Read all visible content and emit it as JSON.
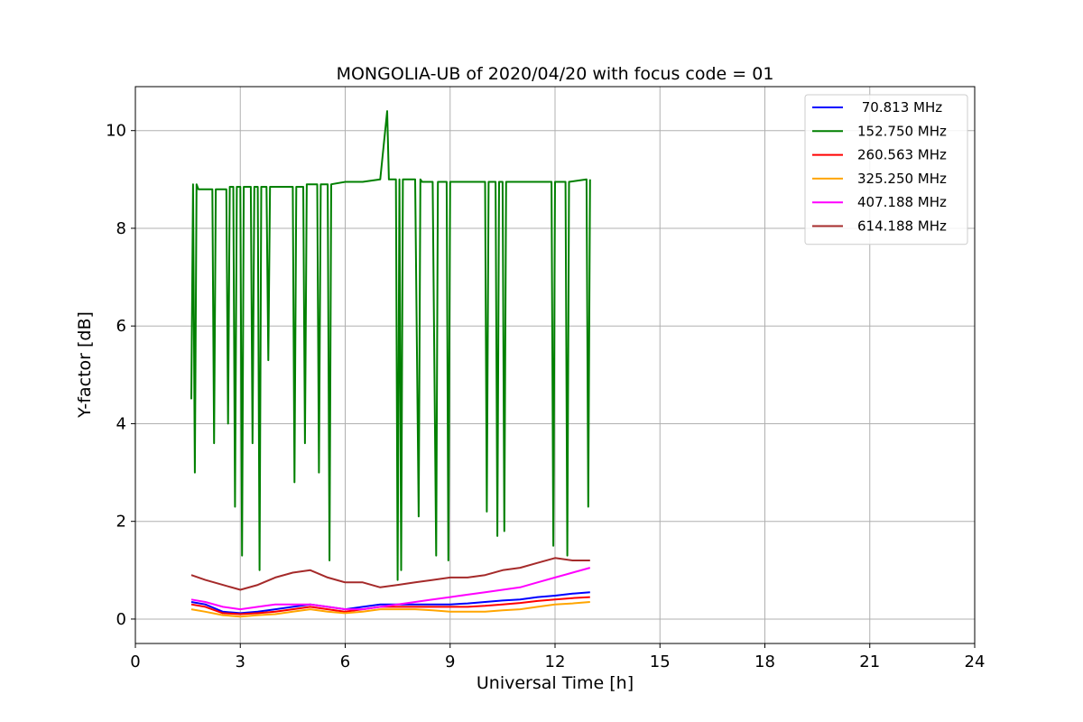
{
  "chart_data": {
    "type": "line",
    "title": "MONGOLIA-UB of 2020/04/20 with focus code = 01",
    "xlabel": "Universal Time [h]",
    "ylabel": "Y-factor [dB]",
    "xlim": [
      0,
      24
    ],
    "ylim": [
      -0.5,
      10.9
    ],
    "xticks": [
      0,
      3,
      6,
      9,
      12,
      15,
      18,
      21,
      24
    ],
    "yticks": [
      0,
      2,
      4,
      6,
      8,
      10
    ],
    "grid": true,
    "legend_position": "top-right",
    "series": [
      {
        "name": " 70.813 MHz",
        "color": "#0000ff",
        "x": [
          1.6,
          2.0,
          2.5,
          3.0,
          3.5,
          4.0,
          4.5,
          5.0,
          5.5,
          6.0,
          6.5,
          7.0,
          7.5,
          8.0,
          8.5,
          9.0,
          9.5,
          10.0,
          10.5,
          11.0,
          11.5,
          12.0,
          12.5,
          13.0
        ],
        "y": [
          0.35,
          0.3,
          0.15,
          0.12,
          0.15,
          0.2,
          0.25,
          0.3,
          0.25,
          0.2,
          0.25,
          0.3,
          0.3,
          0.3,
          0.3,
          0.3,
          0.32,
          0.35,
          0.38,
          0.4,
          0.45,
          0.48,
          0.52,
          0.55
        ]
      },
      {
        "name": "152.750 MHz",
        "color": "#008000",
        "x": [
          1.6,
          1.65,
          1.7,
          1.75,
          1.8,
          2.0,
          2.2,
          2.25,
          2.3,
          2.5,
          2.6,
          2.65,
          2.7,
          2.8,
          2.85,
          2.9,
          3.0,
          3.05,
          3.1,
          3.3,
          3.35,
          3.4,
          3.5,
          3.55,
          3.6,
          3.75,
          3.8,
          3.85,
          4.0,
          4.5,
          4.55,
          4.6,
          4.8,
          4.85,
          4.9,
          5.2,
          5.25,
          5.3,
          5.5,
          5.55,
          5.6,
          6.0,
          6.5,
          7.0,
          7.2,
          7.25,
          7.3,
          7.45,
          7.5,
          7.55,
          7.6,
          7.65,
          7.7,
          8.0,
          8.1,
          8.15,
          8.2,
          8.5,
          8.6,
          8.65,
          8.7,
          8.9,
          8.95,
          9.0,
          9.3,
          9.5,
          10.0,
          10.05,
          10.1,
          10.3,
          10.35,
          10.4,
          10.5,
          10.55,
          10.6,
          11.0,
          11.5,
          11.9,
          11.95,
          12.0,
          12.3,
          12.35,
          12.4,
          12.9,
          12.95,
          13.0
        ],
        "y": [
          4.5,
          8.9,
          3.0,
          8.9,
          8.8,
          8.8,
          8.8,
          3.6,
          8.8,
          8.8,
          8.8,
          4.0,
          8.85,
          8.85,
          2.3,
          8.85,
          8.85,
          1.3,
          8.85,
          8.85,
          3.6,
          8.85,
          8.85,
          1.0,
          8.85,
          8.85,
          5.3,
          8.85,
          8.85,
          8.85,
          2.8,
          8.85,
          8.85,
          3.6,
          8.9,
          8.9,
          3.0,
          8.9,
          8.9,
          1.2,
          8.9,
          8.95,
          8.95,
          9.0,
          10.4,
          9.0,
          9.0,
          9.0,
          0.8,
          9.0,
          1.0,
          9.0,
          9.0,
          9.0,
          2.1,
          9.0,
          8.95,
          8.95,
          1.3,
          8.95,
          8.95,
          8.95,
          1.2,
          8.95,
          8.95,
          8.95,
          8.95,
          2.2,
          8.95,
          8.95,
          1.7,
          8.95,
          8.95,
          1.8,
          8.95,
          8.95,
          8.95,
          8.95,
          1.5,
          8.95,
          8.95,
          1.3,
          8.95,
          9.0,
          2.3,
          9.0
        ]
      },
      {
        "name": "260.563 MHz",
        "color": "#ff0000",
        "x": [
          1.6,
          2.0,
          2.5,
          3.0,
          3.5,
          4.0,
          4.5,
          5.0,
          5.5,
          6.0,
          6.5,
          7.0,
          7.5,
          8.0,
          8.5,
          9.0,
          9.5,
          10.0,
          10.5,
          11.0,
          11.5,
          12.0,
          12.5,
          13.0
        ],
        "y": [
          0.3,
          0.25,
          0.12,
          0.1,
          0.12,
          0.15,
          0.2,
          0.25,
          0.2,
          0.15,
          0.2,
          0.25,
          0.25,
          0.25,
          0.25,
          0.25,
          0.25,
          0.27,
          0.3,
          0.33,
          0.37,
          0.4,
          0.43,
          0.45
        ]
      },
      {
        "name": "325.250 MHz",
        "color": "#ffa500",
        "x": [
          1.6,
          2.0,
          2.5,
          3.0,
          3.5,
          4.0,
          4.5,
          5.0,
          5.5,
          6.0,
          6.5,
          7.0,
          7.5,
          8.0,
          8.5,
          9.0,
          9.5,
          10.0,
          10.5,
          11.0,
          11.5,
          12.0,
          12.5,
          13.0
        ],
        "y": [
          0.2,
          0.15,
          0.08,
          0.05,
          0.08,
          0.1,
          0.15,
          0.2,
          0.15,
          0.12,
          0.15,
          0.2,
          0.2,
          0.2,
          0.18,
          0.15,
          0.15,
          0.15,
          0.18,
          0.2,
          0.25,
          0.3,
          0.32,
          0.35
        ]
      },
      {
        "name": "407.188 MHz",
        "color": "#ff00ff",
        "x": [
          1.6,
          2.0,
          2.5,
          3.0,
          3.5,
          4.0,
          4.5,
          5.0,
          5.5,
          6.0,
          6.5,
          7.0,
          7.5,
          8.0,
          8.5,
          9.0,
          9.5,
          10.0,
          10.5,
          11.0,
          11.5,
          12.0,
          12.5,
          13.0
        ],
        "y": [
          0.4,
          0.35,
          0.25,
          0.2,
          0.25,
          0.3,
          0.3,
          0.3,
          0.25,
          0.2,
          0.2,
          0.25,
          0.3,
          0.35,
          0.4,
          0.45,
          0.5,
          0.55,
          0.6,
          0.65,
          0.75,
          0.85,
          0.95,
          1.05
        ]
      },
      {
        "name": "614.188 MHz",
        "color": "#a52a2a",
        "x": [
          1.6,
          2.0,
          2.5,
          3.0,
          3.5,
          4.0,
          4.5,
          5.0,
          5.5,
          6.0,
          6.5,
          7.0,
          7.5,
          8.0,
          8.5,
          9.0,
          9.5,
          10.0,
          10.5,
          11.0,
          11.5,
          12.0,
          12.5,
          13.0
        ],
        "y": [
          0.9,
          0.8,
          0.7,
          0.6,
          0.7,
          0.85,
          0.95,
          1.0,
          0.85,
          0.75,
          0.75,
          0.65,
          0.7,
          0.75,
          0.8,
          0.85,
          0.85,
          0.9,
          1.0,
          1.05,
          1.15,
          1.25,
          1.2,
          1.2
        ]
      }
    ]
  }
}
